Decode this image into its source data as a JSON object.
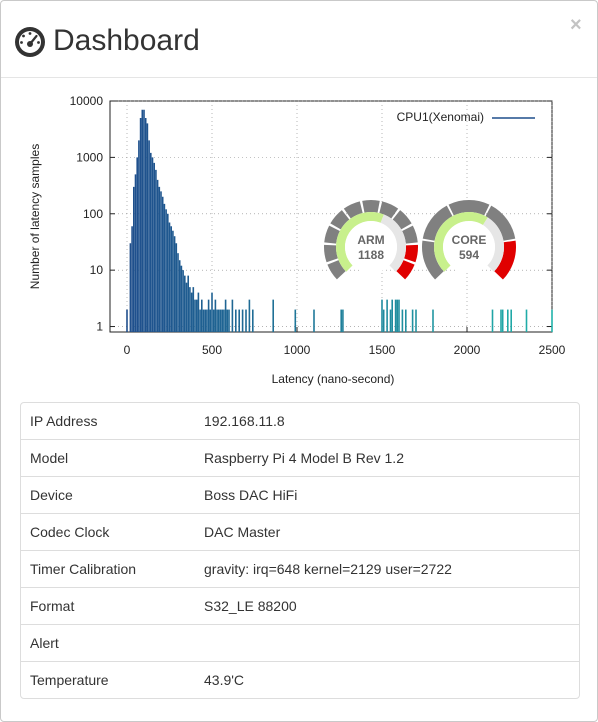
{
  "dialog": {
    "title": "Dashboard",
    "close_label": "×"
  },
  "chart_data": {
    "type": "bar",
    "xlabel": "Latency (nano-second)",
    "ylabel": "Number of latency samples",
    "xlim": [
      -100,
      2500
    ],
    "ylim": [
      0.8,
      10000
    ],
    "yscale": "log",
    "xticks": [
      0,
      500,
      1000,
      1500,
      2000,
      2500
    ],
    "yticks": [
      1,
      10,
      100,
      1000,
      10000
    ],
    "grid": "dotted",
    "legend_position": "top-right",
    "series": [
      {
        "name": "CPU1(Xenomai)",
        "color": "#1f4e8c",
        "x": [
          0,
          20,
          30,
          40,
          50,
          60,
          70,
          80,
          90,
          100,
          110,
          120,
          130,
          140,
          150,
          160,
          170,
          180,
          190,
          200,
          210,
          220,
          230,
          240,
          250,
          260,
          270,
          280,
          290,
          300,
          310,
          320,
          330,
          340,
          350,
          360,
          370,
          380,
          390,
          400,
          410,
          420,
          430,
          440,
          450,
          460,
          470,
          480,
          490,
          500,
          510,
          520,
          530,
          540,
          550,
          560,
          570,
          580,
          590,
          600,
          620,
          640,
          660,
          680,
          700,
          720,
          740,
          860,
          990,
          1100,
          1260,
          1270,
          1500,
          1510,
          1530,
          1550,
          1560,
          1580,
          1590,
          1600,
          1620,
          1640,
          1680,
          1700,
          1800,
          2150,
          2200,
          2210,
          2240,
          2260,
          2350,
          2500
        ],
        "y": [
          2,
          30,
          60,
          300,
          500,
          1000,
          2000,
          5000,
          7000,
          7000,
          5000,
          4000,
          2000,
          1200,
          1000,
          800,
          600,
          400,
          300,
          250,
          200,
          150,
          120,
          100,
          70,
          60,
          50,
          40,
          30,
          20,
          15,
          12,
          10,
          8,
          6,
          8,
          5,
          4,
          5,
          3,
          3,
          4,
          2,
          3,
          2,
          2,
          2,
          3,
          2,
          4,
          2,
          3,
          2,
          2,
          2,
          2,
          2,
          3,
          2,
          2,
          3,
          2,
          2,
          2,
          2,
          3,
          2,
          3,
          2,
          2,
          2,
          2,
          3,
          2,
          3,
          2,
          3,
          3,
          3,
          3,
          2,
          2,
          2,
          2,
          2,
          2,
          2,
          2,
          2,
          2,
          2,
          2
        ]
      }
    ]
  },
  "gauges": [
    {
      "label": "ARM",
      "value": "1188",
      "fraction": 0.58,
      "red_from": 0.85
    },
    {
      "label": "CORE",
      "value": "594",
      "fraction": 0.62,
      "red_from": 0.72
    }
  ],
  "info_rows": [
    {
      "key": "IP Address",
      "value": "192.168.11.8"
    },
    {
      "key": "Model",
      "value": "Raspberry Pi 4 Model B Rev 1.2"
    },
    {
      "key": "Device",
      "value": "Boss DAC HiFi"
    },
    {
      "key": "Codec Clock",
      "value": "DAC Master"
    },
    {
      "key": "Timer Calibration",
      "value": "gravity: irq=648 kernel=2129 user=2722"
    },
    {
      "key": "Format",
      "value": "S32_LE 88200"
    },
    {
      "key": "Alert",
      "value": ""
    },
    {
      "key": "Temperature",
      "value": "43.9'C"
    }
  ]
}
